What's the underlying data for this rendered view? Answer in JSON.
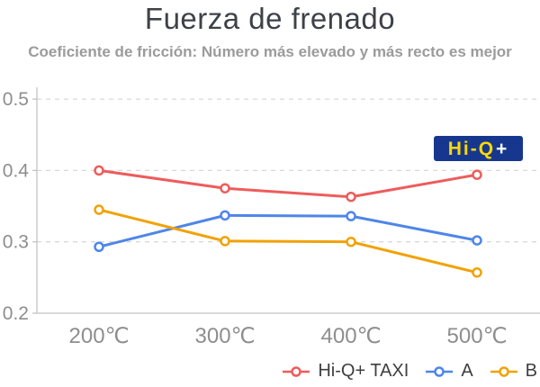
{
  "title": "Fuerza de frenado",
  "subtitle": "Coeficiente de fricción: Número más elevado y más recto es mejor",
  "badge": {
    "text_main": "Hi-Q",
    "text_plus": "+",
    "bg_color": "#17378E",
    "text_color": "#FFD800",
    "plus_color": "#FFFFFF"
  },
  "chart_data": {
    "type": "line",
    "title": "Fuerza de frenado",
    "subtitle": "Coeficiente de fricción: Número más elevado y más recto es mejor",
    "categories": [
      "200℃",
      "300℃",
      "400℃",
      "500℃"
    ],
    "series": [
      {
        "name": "Hi-Q+ TAXI",
        "color": "#EE5C5C",
        "values": [
          0.4,
          0.375,
          0.363,
          0.394
        ]
      },
      {
        "name": "A",
        "color": "#4E86E8",
        "values": [
          0.293,
          0.337,
          0.336,
          0.302
        ]
      },
      {
        "name": "B",
        "color": "#F1A205",
        "values": [
          0.345,
          0.301,
          0.3,
          0.257
        ]
      }
    ],
    "xlabel": "",
    "ylabel": "",
    "ylim": [
      0.2,
      0.5
    ],
    "y_ticks": [
      0.2,
      0.3,
      0.4,
      0.5
    ],
    "grid": "horizontal-dashed",
    "marker": "hollow-circle",
    "legend_position": "bottom-right",
    "axis_color": "#C4C4C4",
    "grid_color": "#D9D9D9",
    "tick_label_color": "#8E8E8E"
  }
}
